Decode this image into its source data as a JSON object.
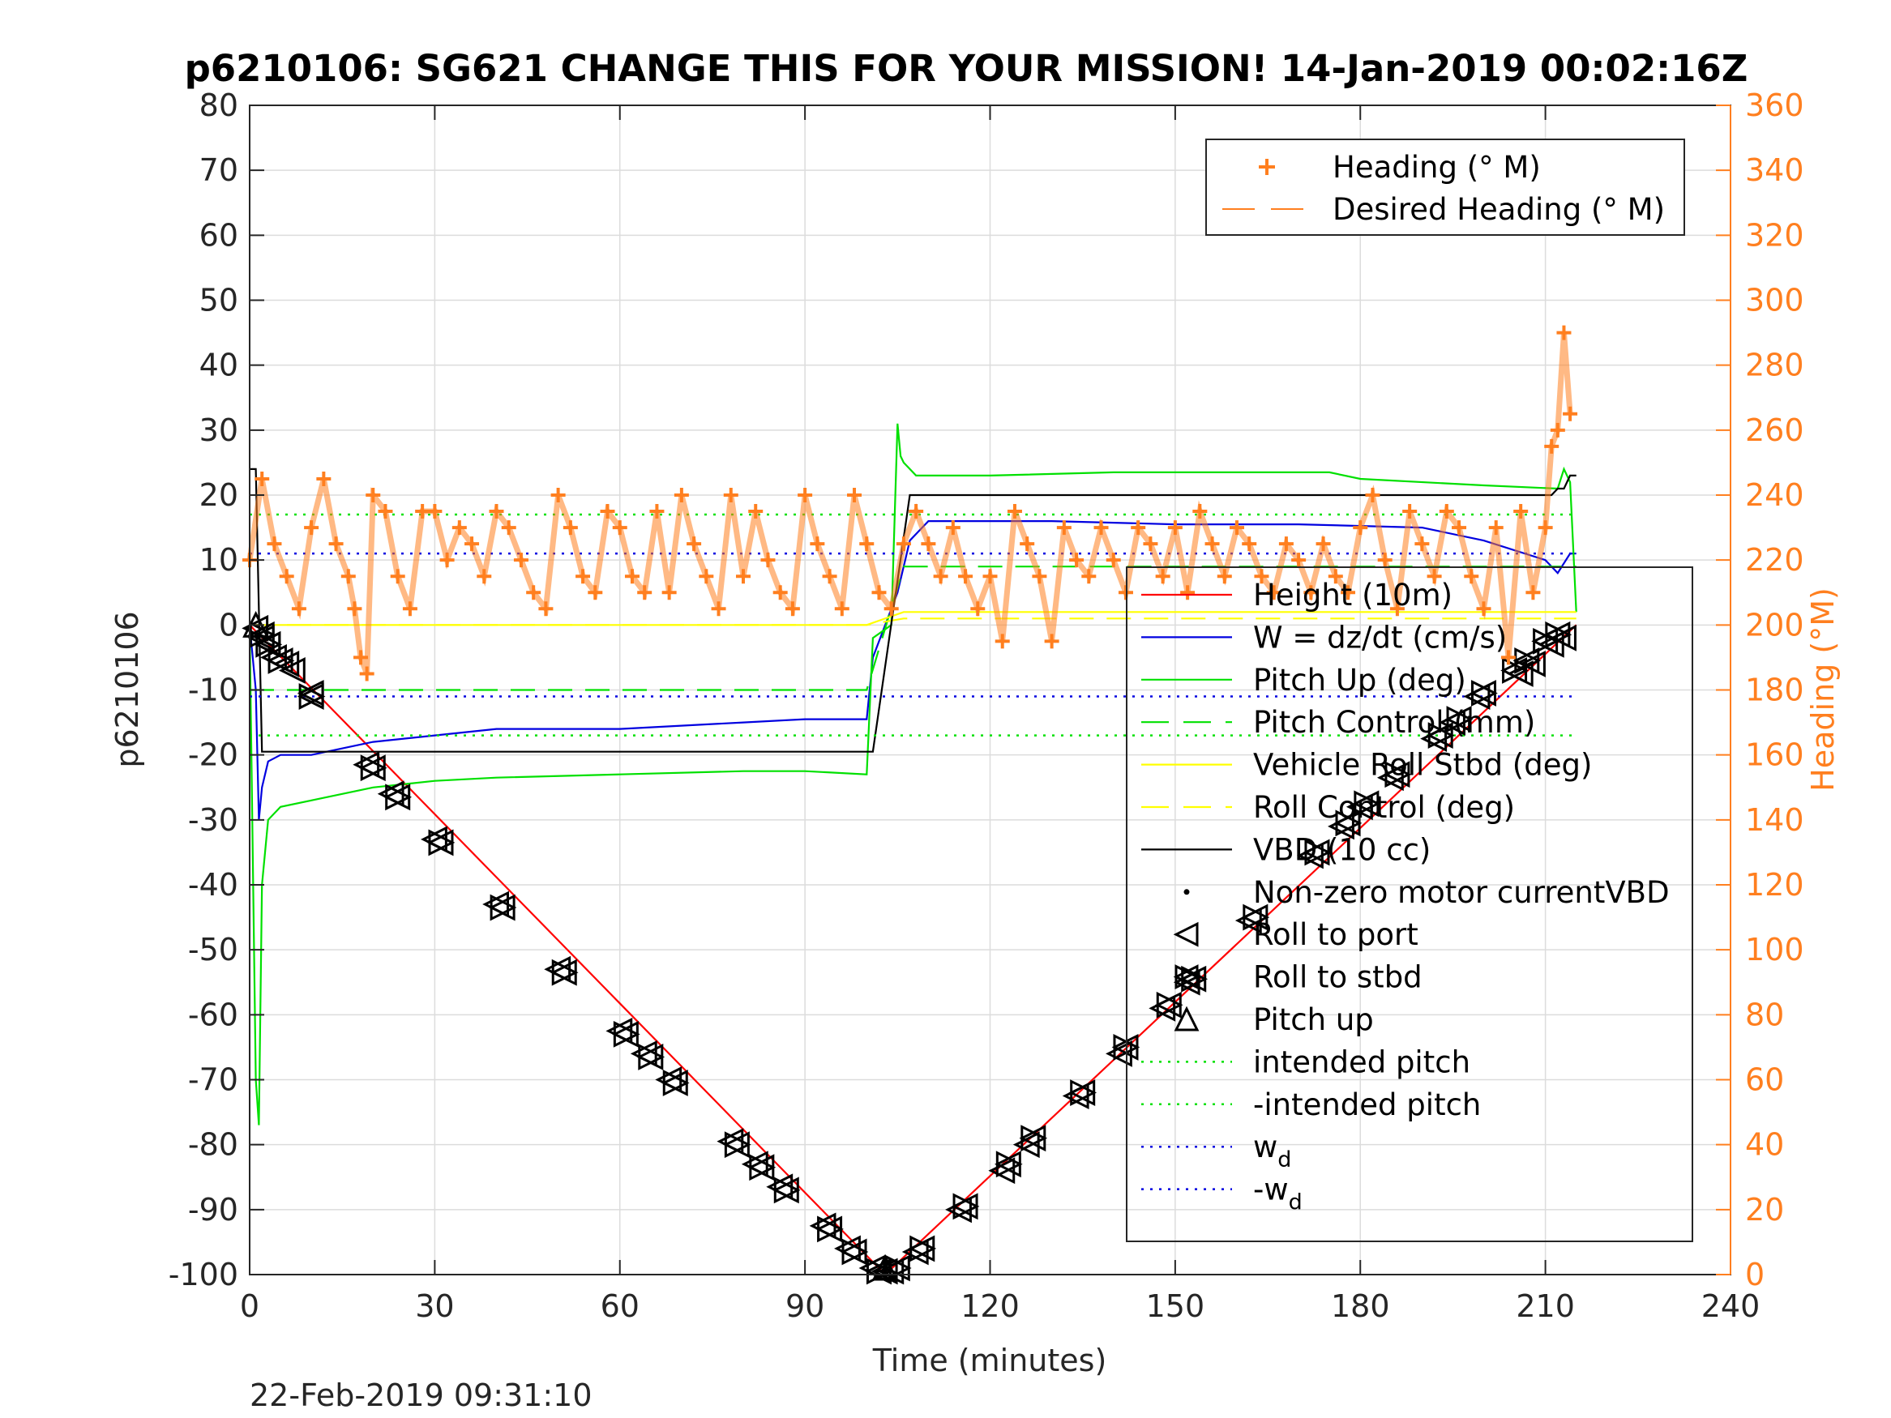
{
  "chart_data": {
    "type": "line",
    "title": "p6210106: SG621 CHANGE THIS FOR YOUR MISSION! 14-Jan-2019 00:02:16Z",
    "xlabel": "Time (minutes)",
    "ylabel": "p6210106",
    "y2label": "Heading (°M)",
    "xlim": [
      0,
      240
    ],
    "ylim": [
      -100,
      80
    ],
    "y2lim": [
      0,
      360
    ],
    "xticks": [
      0,
      30,
      60,
      90,
      120,
      150,
      180,
      210,
      240
    ],
    "yticks": [
      80,
      70,
      60,
      50,
      40,
      30,
      20,
      10,
      0,
      -10,
      -20,
      -30,
      -40,
      -50,
      -60,
      -70,
      -80,
      -90,
      -100
    ],
    "y2ticks": [
      360,
      340,
      320,
      300,
      280,
      260,
      240,
      220,
      200,
      180,
      160,
      140,
      120,
      100,
      80,
      60,
      40,
      20,
      0
    ],
    "grid": true,
    "footer": "22-Feb-2019 09:31:10",
    "colors": {
      "height": "#ff0000",
      "w": "#0000e0",
      "pitch": "#00e000",
      "roll": "#ffff00",
      "vbd": "#000000",
      "heading": "#ff7f1f",
      "y2axis": "#ff7f1f"
    },
    "series": [
      {
        "name": "Height (10m)",
        "axis": "left",
        "style": "solid",
        "color": "#ff0000",
        "x": [
          0,
          103,
          215
        ],
        "y": [
          0,
          -100,
          0
        ]
      },
      {
        "name": "W = dz/dt (cm/s)",
        "axis": "left",
        "style": "solid",
        "color": "#0000e0",
        "x": [
          0,
          1,
          1.5,
          2,
          3,
          5,
          10,
          20,
          30,
          40,
          60,
          80,
          90,
          100,
          101,
          105,
          107,
          110,
          130,
          150,
          170,
          190,
          200,
          210,
          212,
          214,
          215
        ],
        "y": [
          0,
          -10,
          -30,
          -25,
          -21,
          -20,
          -20,
          -18,
          -17,
          -16,
          -16,
          -15,
          -14.5,
          -14.5,
          -5,
          5,
          13,
          16,
          16,
          15.5,
          15.5,
          15,
          13,
          10,
          8,
          11,
          11
        ]
      },
      {
        "name": "Pitch Up (deg)",
        "axis": "left",
        "style": "solid",
        "color": "#00e000",
        "x": [
          0,
          1,
          1.5,
          2,
          3,
          5,
          10,
          20,
          30,
          40,
          60,
          80,
          90,
          100,
          101,
          104,
          105,
          105.5,
          106,
          108,
          120,
          140,
          160,
          175,
          180,
          200,
          212,
          213,
          214,
          215
        ],
        "y": [
          0,
          -70,
          -77,
          -40,
          -30,
          -28,
          -27,
          -25,
          -24,
          -23.5,
          -23,
          -22.5,
          -22.5,
          -23,
          -2,
          0,
          31,
          26,
          25,
          23,
          23,
          23.5,
          23.5,
          23.5,
          22.5,
          21.5,
          21,
          24,
          22,
          2
        ]
      },
      {
        "name": "Pitch Control (mm)",
        "axis": "left",
        "style": "dashed",
        "color": "#00e000",
        "x": [
          0,
          100,
          106,
          215
        ],
        "y": [
          -10,
          -10,
          9,
          9
        ]
      },
      {
        "name": "Vehicle Roll Stbd (deg)",
        "axis": "left",
        "style": "solid",
        "color": "#ffff00",
        "x": [
          0,
          100,
          106,
          215
        ],
        "y": [
          0,
          0,
          2,
          2
        ]
      },
      {
        "name": "Roll Control (deg)",
        "axis": "left",
        "style": "dashed",
        "color": "#ffff00",
        "x": [
          0,
          100,
          106,
          215
        ],
        "y": [
          0,
          0,
          1,
          1
        ]
      },
      {
        "name": "VBD (10 cc)",
        "axis": "left",
        "style": "solid",
        "color": "#000000",
        "x": [
          0,
          1,
          2,
          100,
          101,
          107,
          108,
          211,
          212,
          213,
          214,
          215
        ],
        "y": [
          24,
          24,
          -19.5,
          -19.5,
          -19.5,
          20,
          20,
          20,
          21,
          21,
          23,
          23
        ]
      },
      {
        "name": "Non-zero motor currentVBD",
        "axis": "left",
        "style": "marker-dot",
        "color": "#000000",
        "x": [],
        "y": []
      },
      {
        "name": "Roll to port",
        "axis": "left",
        "style": "marker-triangle-left",
        "color": "#000000",
        "x": [
          1,
          2,
          3,
          4,
          6,
          7,
          10,
          19,
          23,
          30,
          40,
          50,
          60,
          64,
          68,
          78,
          82,
          86,
          93,
          97,
          101,
          103,
          104,
          108,
          115,
          122,
          126,
          134,
          141,
          148,
          152,
          162,
          172,
          177,
          180,
          185,
          192,
          195,
          199,
          206,
          208,
          211,
          213
        ],
        "y": [
          -0.5,
          -2,
          -3,
          -5,
          -6,
          -7,
          -10.5,
          -21.5,
          -26,
          -33,
          -43,
          -53,
          -62.5,
          -66,
          -70,
          -79.5,
          -83,
          -86.5,
          -92.5,
          -96,
          -99,
          -99.5,
          -99.5,
          -96.5,
          -90,
          -84,
          -80,
          -72.5,
          -66,
          -59,
          -55,
          -45.5,
          -35.5,
          -31,
          -28,
          -23.5,
          -17.5,
          -15,
          -11,
          -7.5,
          -6,
          -3,
          -2
        ]
      },
      {
        "name": "Roll to stbd",
        "axis": "left",
        "style": "marker-bowtie",
        "color": "#000000",
        "x": [
          2,
          3,
          5,
          10,
          20,
          24,
          31,
          41,
          51,
          61,
          65,
          69,
          79,
          83,
          87,
          94,
          98,
          102,
          105,
          109,
          116,
          123,
          127,
          135,
          142,
          149,
          153,
          163,
          173,
          178,
          181,
          186,
          193,
          196,
          200,
          205,
          207,
          210,
          212
        ],
        "y": [
          -1.5,
          -3,
          -5.5,
          -11,
          -22,
          -26.5,
          -33.5,
          -43.5,
          -53.5,
          -63,
          -66.5,
          -70.5,
          -80,
          -83.5,
          -87,
          -93,
          -96.5,
          -99.5,
          -99,
          -96,
          -89.5,
          -83,
          -79,
          -72,
          -65,
          -58.5,
          -54.5,
          -45,
          -35,
          -30.5,
          -27.5,
          -23,
          -17,
          -14.5,
          -10.5,
          -7,
          -5.5,
          -2.5,
          -1.5
        ]
      },
      {
        "name": "Pitch up",
        "axis": "left",
        "style": "marker-triangle-up",
        "color": "#000000",
        "x": [
          1,
          103
        ],
        "y": [
          0,
          -99
        ]
      },
      {
        "name": "intended pitch",
        "axis": "left",
        "style": "dotted",
        "color": "#00e000",
        "x": [
          0,
          215
        ],
        "y": [
          17,
          17
        ]
      },
      {
        "name": "-intended pitch",
        "axis": "left",
        "style": "dotted",
        "color": "#00e000",
        "x": [
          0,
          215
        ],
        "y": [
          -17,
          -17
        ]
      },
      {
        "name": "w_d",
        "axis": "left",
        "style": "dotted",
        "color": "#0000e0",
        "x": [
          0,
          215
        ],
        "y": [
          11,
          11
        ]
      },
      {
        "name": "-w_d",
        "axis": "left",
        "style": "dotted",
        "color": "#0000e0",
        "x": [
          0,
          215
        ],
        "y": [
          -11,
          -11
        ]
      },
      {
        "name": "Heading (° M)",
        "axis": "right",
        "style": "marker-plus",
        "color": "#ff7f1f",
        "x": [
          0,
          2,
          4,
          6,
          8,
          10,
          12,
          14,
          16,
          17,
          18,
          19,
          20,
          22,
          24,
          26,
          28,
          30,
          32,
          34,
          36,
          38,
          40,
          42,
          44,
          46,
          48,
          50,
          52,
          54,
          56,
          58,
          60,
          62,
          64,
          66,
          68,
          70,
          72,
          74,
          76,
          78,
          80,
          82,
          84,
          86,
          88,
          90,
          92,
          94,
          96,
          98,
          100,
          102,
          104,
          106,
          108,
          110,
          112,
          114,
          116,
          118,
          120,
          122,
          124,
          126,
          128,
          130,
          132,
          134,
          136,
          138,
          140,
          142,
          144,
          146,
          148,
          150,
          152,
          154,
          156,
          158,
          160,
          162,
          164,
          166,
          168,
          170,
          172,
          174,
          176,
          178,
          180,
          182,
          184,
          186,
          188,
          190,
          192,
          194,
          196,
          198,
          200,
          202,
          204,
          206,
          208,
          210,
          211,
          212,
          213,
          214
        ],
        "y": [
          220,
          245,
          225,
          215,
          205,
          230,
          245,
          225,
          215,
          205,
          190,
          185,
          240,
          235,
          215,
          205,
          235,
          235,
          220,
          230,
          225,
          215,
          235,
          230,
          220,
          210,
          205,
          240,
          230,
          215,
          210,
          235,
          230,
          215,
          210,
          235,
          210,
          240,
          225,
          215,
          205,
          240,
          215,
          235,
          220,
          210,
          205,
          240,
          225,
          215,
          205,
          240,
          225,
          210,
          205,
          225,
          235,
          225,
          215,
          230,
          215,
          205,
          215,
          195,
          235,
          225,
          215,
          195,
          230,
          220,
          215,
          230,
          220,
          210,
          230,
          225,
          215,
          230,
          210,
          235,
          225,
          215,
          230,
          225,
          215,
          210,
          225,
          220,
          210,
          225,
          215,
          210,
          230,
          240,
          220,
          205,
          235,
          225,
          215,
          235,
          230,
          215,
          205,
          230,
          190,
          235,
          210,
          230,
          255,
          260,
          290,
          265
        ]
      },
      {
        "name": "Desired Heading (° M)",
        "axis": "right",
        "style": "dashed",
        "color": "#ff7f1f",
        "x": [],
        "y": []
      }
    ],
    "legend_top": [
      {
        "label": "Heading (° M)",
        "symbol": "plus",
        "color": "#ff7f1f"
      },
      {
        "label": "Desired Heading (° M)",
        "symbol": "dash",
        "color": "#ff7f1f"
      }
    ],
    "legend_main": [
      {
        "label": "Height (10m)",
        "symbol": "line",
        "color": "#ff0000"
      },
      {
        "label": "W = dz/dt (cm/s)",
        "symbol": "line",
        "color": "#0000e0"
      },
      {
        "label": "Pitch Up (deg)",
        "symbol": "line",
        "color": "#00e000"
      },
      {
        "label": "Pitch Control (mm)",
        "symbol": "dash",
        "color": "#00e000"
      },
      {
        "label": "Vehicle Roll Stbd (deg)",
        "symbol": "line",
        "color": "#ffff00"
      },
      {
        "label": "Roll Control (deg)",
        "symbol": "dash",
        "color": "#ffff00"
      },
      {
        "label": "VBD (10 cc)",
        "symbol": "line",
        "color": "#000000"
      },
      {
        "label": "Non-zero motor currentVBD",
        "symbol": "dot",
        "color": "#000000"
      },
      {
        "label": "Roll to port",
        "symbol": "tri-left",
        "color": "#000000"
      },
      {
        "label": "Roll to stbd",
        "symbol": "bowtie",
        "color": "#000000"
      },
      {
        "label": "Pitch up",
        "symbol": "tri-up",
        "color": "#000000"
      },
      {
        "label": "intended pitch",
        "symbol": "dot-line",
        "color": "#00e000"
      },
      {
        "label": "-intended pitch",
        "symbol": "dot-line",
        "color": "#00e000"
      },
      {
        "label": "w",
        "sub": "d",
        "symbol": "dot-line",
        "color": "#0000e0"
      },
      {
        "label": "-w",
        "sub": "d",
        "symbol": "dot-line",
        "color": "#0000e0"
      }
    ]
  }
}
